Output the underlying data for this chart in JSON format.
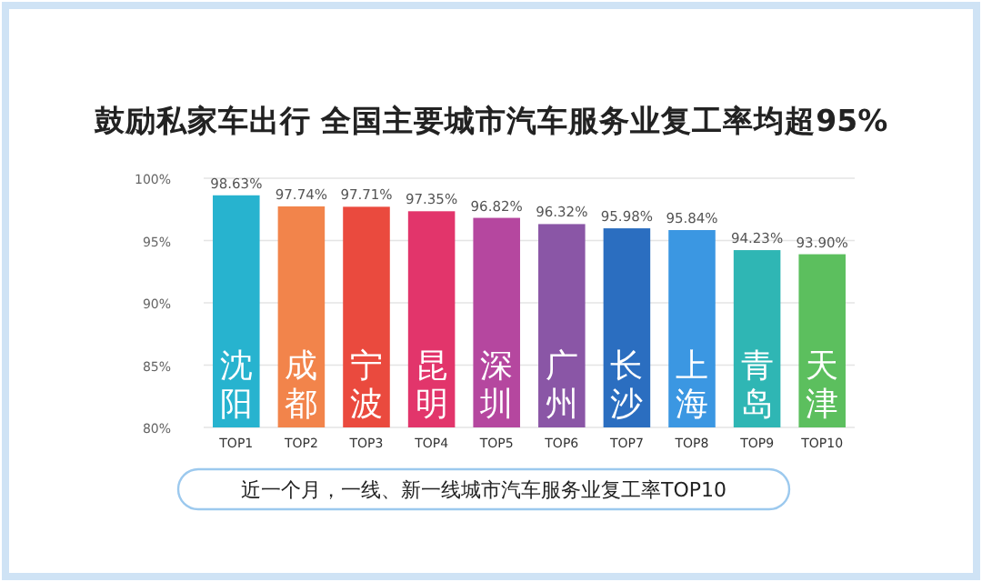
{
  "chart_data": {
    "type": "bar",
    "title": "鼓励私家车出行  全国主要城市汽车服务业复工率均超95%",
    "xlabel": "近一个月，一线、新一线城市汽车服务业复工率TOP10",
    "categories": [
      "TOP1",
      "TOP2",
      "TOP3",
      "TOP4",
      "TOP5",
      "TOP6",
      "TOP7",
      "TOP8",
      "TOP9",
      "TOP10"
    ],
    "values": [
      98.63,
      97.74,
      97.71,
      97.35,
      96.82,
      96.32,
      95.98,
      95.84,
      94.23,
      93.9
    ],
    "value_labels": [
      "98.63%",
      "97.74%",
      "97.71%",
      "97.35%",
      "96.82%",
      "96.32%",
      "95.98%",
      "95.84%",
      "94.23%",
      "93.90%"
    ],
    "colors": [
      "#27b3cf",
      "#f2844b",
      "#ea4a3e",
      "#e2356b",
      "#b5479f",
      "#8a56a6",
      "#2b6ec0",
      "#3b97e2",
      "#2fb6b4",
      "#5cbf5e"
    ],
    "ylim": [
      80,
      100
    ],
    "yticks": [
      {
        "value": 80,
        "label": "80%"
      },
      {
        "value": 85,
        "label": "85%"
      },
      {
        "value": 90,
        "label": "90%"
      },
      {
        "value": 95,
        "label": "95%"
      },
      {
        "value": 100,
        "label": "100%"
      }
    ],
    "grid": "y",
    "annotations": [
      "沈阳",
      "成都",
      "宁波",
      "昆明",
      "深圳",
      "广州",
      "长沙",
      "上海",
      "青岛",
      "天津"
    ]
  }
}
